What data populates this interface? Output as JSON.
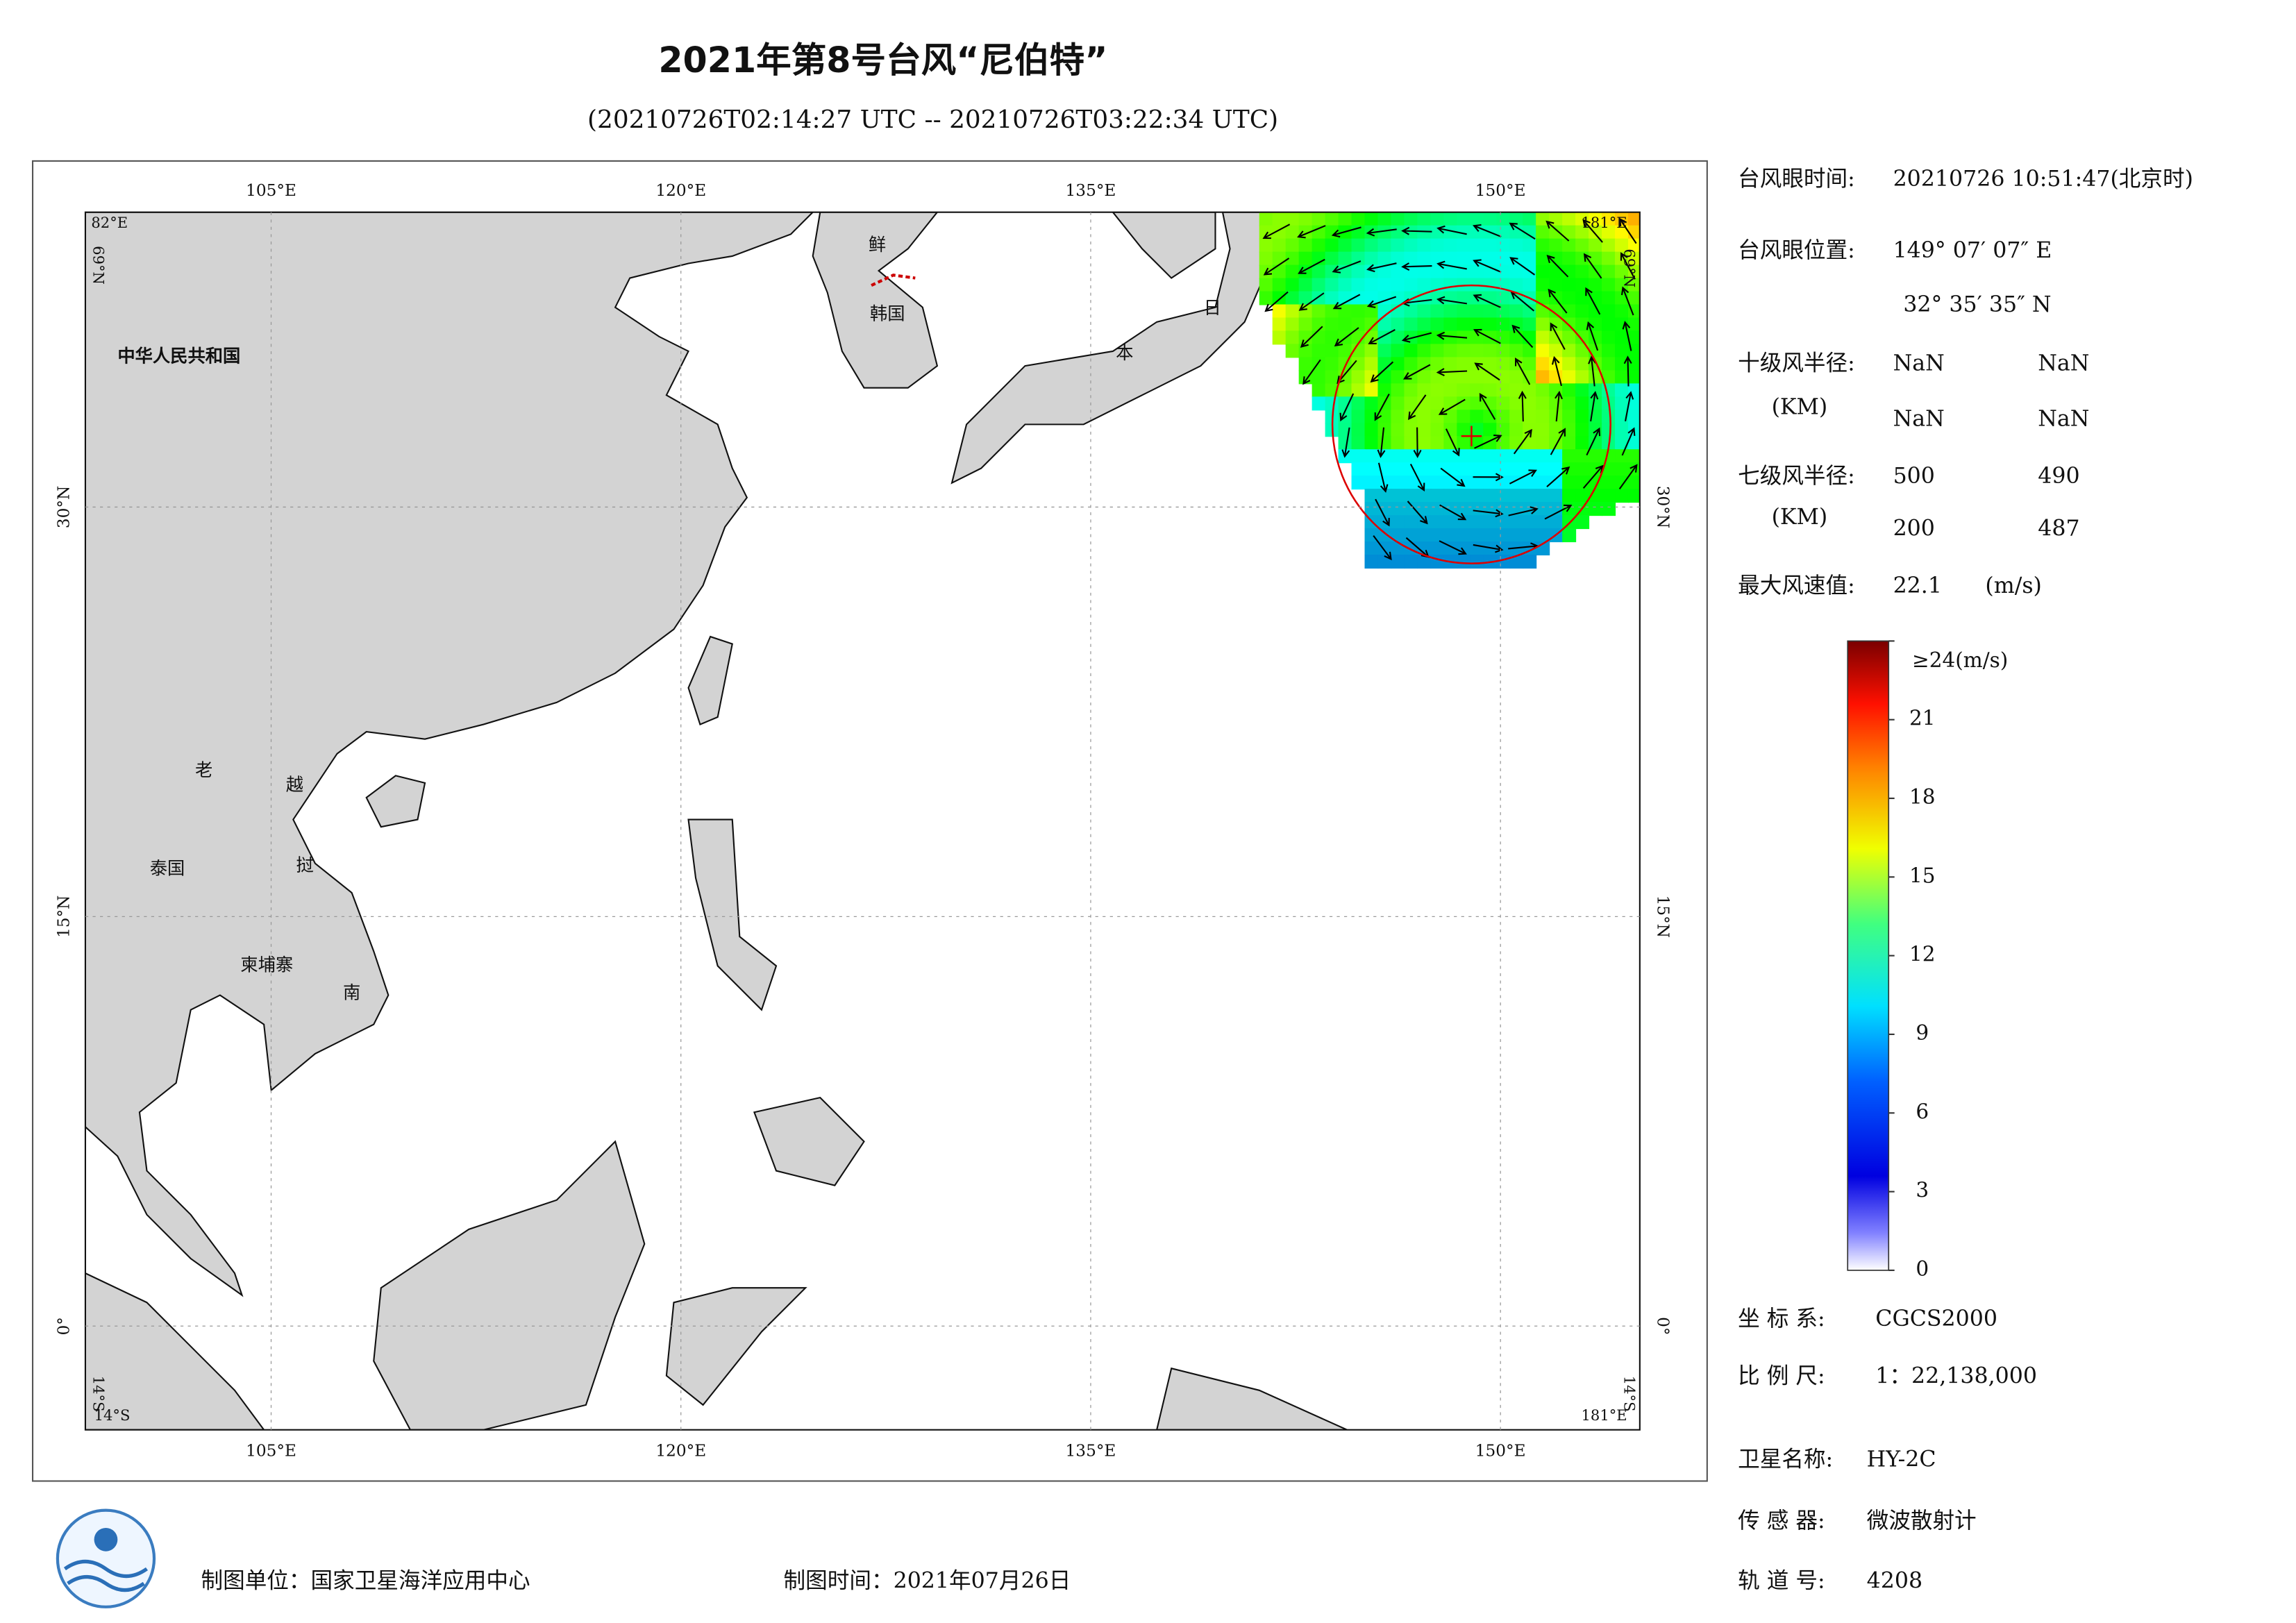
{
  "header": {
    "title": "2021年第8号台风“尼伯特”",
    "subtitle": "(20210726T02:14:27 UTC -- 20210726T03:22:34 UTC)"
  },
  "map": {
    "lon_range": [
      98.2,
      155.1
    ],
    "lat_range": [
      -3.8,
      40.8
    ],
    "lon_ticks": [
      {
        "value": 105,
        "label": "105°E"
      },
      {
        "value": 120,
        "label": "120°E"
      },
      {
        "value": 135,
        "label": "135°E"
      },
      {
        "value": 150,
        "label": "150°E"
      }
    ],
    "lat_ticks": [
      {
        "value": 30,
        "label": "30°N"
      },
      {
        "value": 15,
        "label": "15°N"
      },
      {
        "value": 0,
        "label": "0°"
      }
    ],
    "corner_labels": {
      "top_left": "82°E",
      "left_top": "69°N",
      "bottom_left": "14°S",
      "left_bottom": "14°S",
      "top_right": "181°E",
      "bottom_right": "181°E",
      "right_top": "69°N",
      "right_bottom": "14°S"
    },
    "place_labels": [
      "中华人民共和国",
      "鲜",
      "韩国",
      "日",
      "本",
      "老",
      "越",
      "泰国",
      "挝",
      "柬埔寨",
      "南"
    ]
  },
  "panel": {
    "eye_time": {
      "label": "台风眼时间:",
      "value": "20210726 10:51:47(北京时)"
    },
    "eye_position": {
      "label": "台风眼位置:",
      "lon": "149° 07′ 07″ E",
      "lat": "32° 35′ 35″ N"
    },
    "r10": {
      "label": "十级风半径:",
      "unit": "(KM)",
      "values": [
        "NaN",
        "NaN",
        "NaN",
        "NaN"
      ]
    },
    "r7": {
      "label": "七级风半径:",
      "unit": "(KM)",
      "values": [
        500,
        490,
        200,
        487
      ]
    },
    "max_wind": {
      "label": "最大风速值:",
      "value": 22.1,
      "unit": "(m/s)"
    },
    "info": [
      {
        "label": "坐 标 系:",
        "value": "CGCS2000"
      },
      {
        "label": "比 例 尺:",
        "value": "1：22,138,000"
      },
      {
        "label": "卫星名称:",
        "value": "HY-2C"
      },
      {
        "label": "传 感 器:",
        "value": "微波散射计"
      },
      {
        "label": "轨 道 号:",
        "value": "4208"
      }
    ]
  },
  "colorbar": {
    "lim": [
      0,
      24
    ],
    "ticks": [
      0,
      3,
      6,
      9,
      12,
      15,
      18,
      21,
      {
        "value": 24,
        "label": "≥24(m/s)"
      }
    ]
  },
  "footer": {
    "unit": "制图单位：国家卫星海洋应用中心",
    "time": "制图时间：2021年07月26日"
  }
}
